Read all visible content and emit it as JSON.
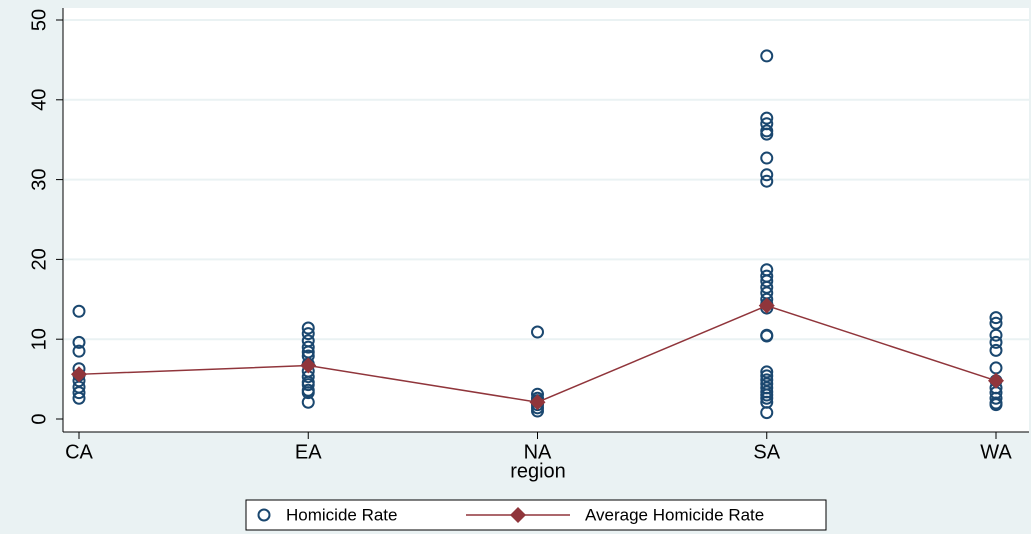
{
  "chart_data": {
    "type": "scatter",
    "x_label": "region",
    "categories": [
      "CA",
      "EA",
      "NA",
      "SA",
      "WA"
    ],
    "ylim": [
      0,
      50
    ],
    "yticks": [
      0,
      10,
      20,
      30,
      40,
      50
    ],
    "grid": true,
    "legend": "bottom",
    "series": [
      {
        "name": "Homicide Rate",
        "color": "#1a476f",
        "marker": "circle",
        "values": [
          [
            13.5,
            9.6,
            8.5,
            6.3,
            5.5,
            4.8,
            4,
            3.3,
            2.6
          ],
          [
            11.4,
            10.7,
            9.8,
            9,
            8.4,
            7.9,
            6.9,
            6,
            5.3,
            4.6,
            4.3,
            3.6,
            3.3,
            2.1
          ],
          [
            10.9,
            3.1,
            2.6,
            2.3,
            1.8,
            1.4,
            1
          ],
          [
            45.5,
            37.7,
            37,
            36.1,
            35.7,
            32.7,
            30.6,
            29.8,
            18.7,
            17.9,
            17.3,
            16.5,
            15.8,
            15,
            14.4,
            13.9,
            10.5,
            10.4,
            5.9,
            5.4,
            4.9,
            4.4,
            3.9,
            3.4,
            3,
            2.6,
            2.1,
            0.8
          ],
          [
            12.7,
            12,
            10.5,
            9.6,
            8.6,
            6.4,
            4.8,
            3.9,
            3.3,
            2.6,
            2,
            1.8
          ]
        ]
      },
      {
        "name": "Average Homicide Rate",
        "color": "#90353b",
        "marker": "diamond",
        "values": [
          5.6,
          6.7,
          2.1,
          14.2,
          4.8
        ]
      }
    ]
  }
}
